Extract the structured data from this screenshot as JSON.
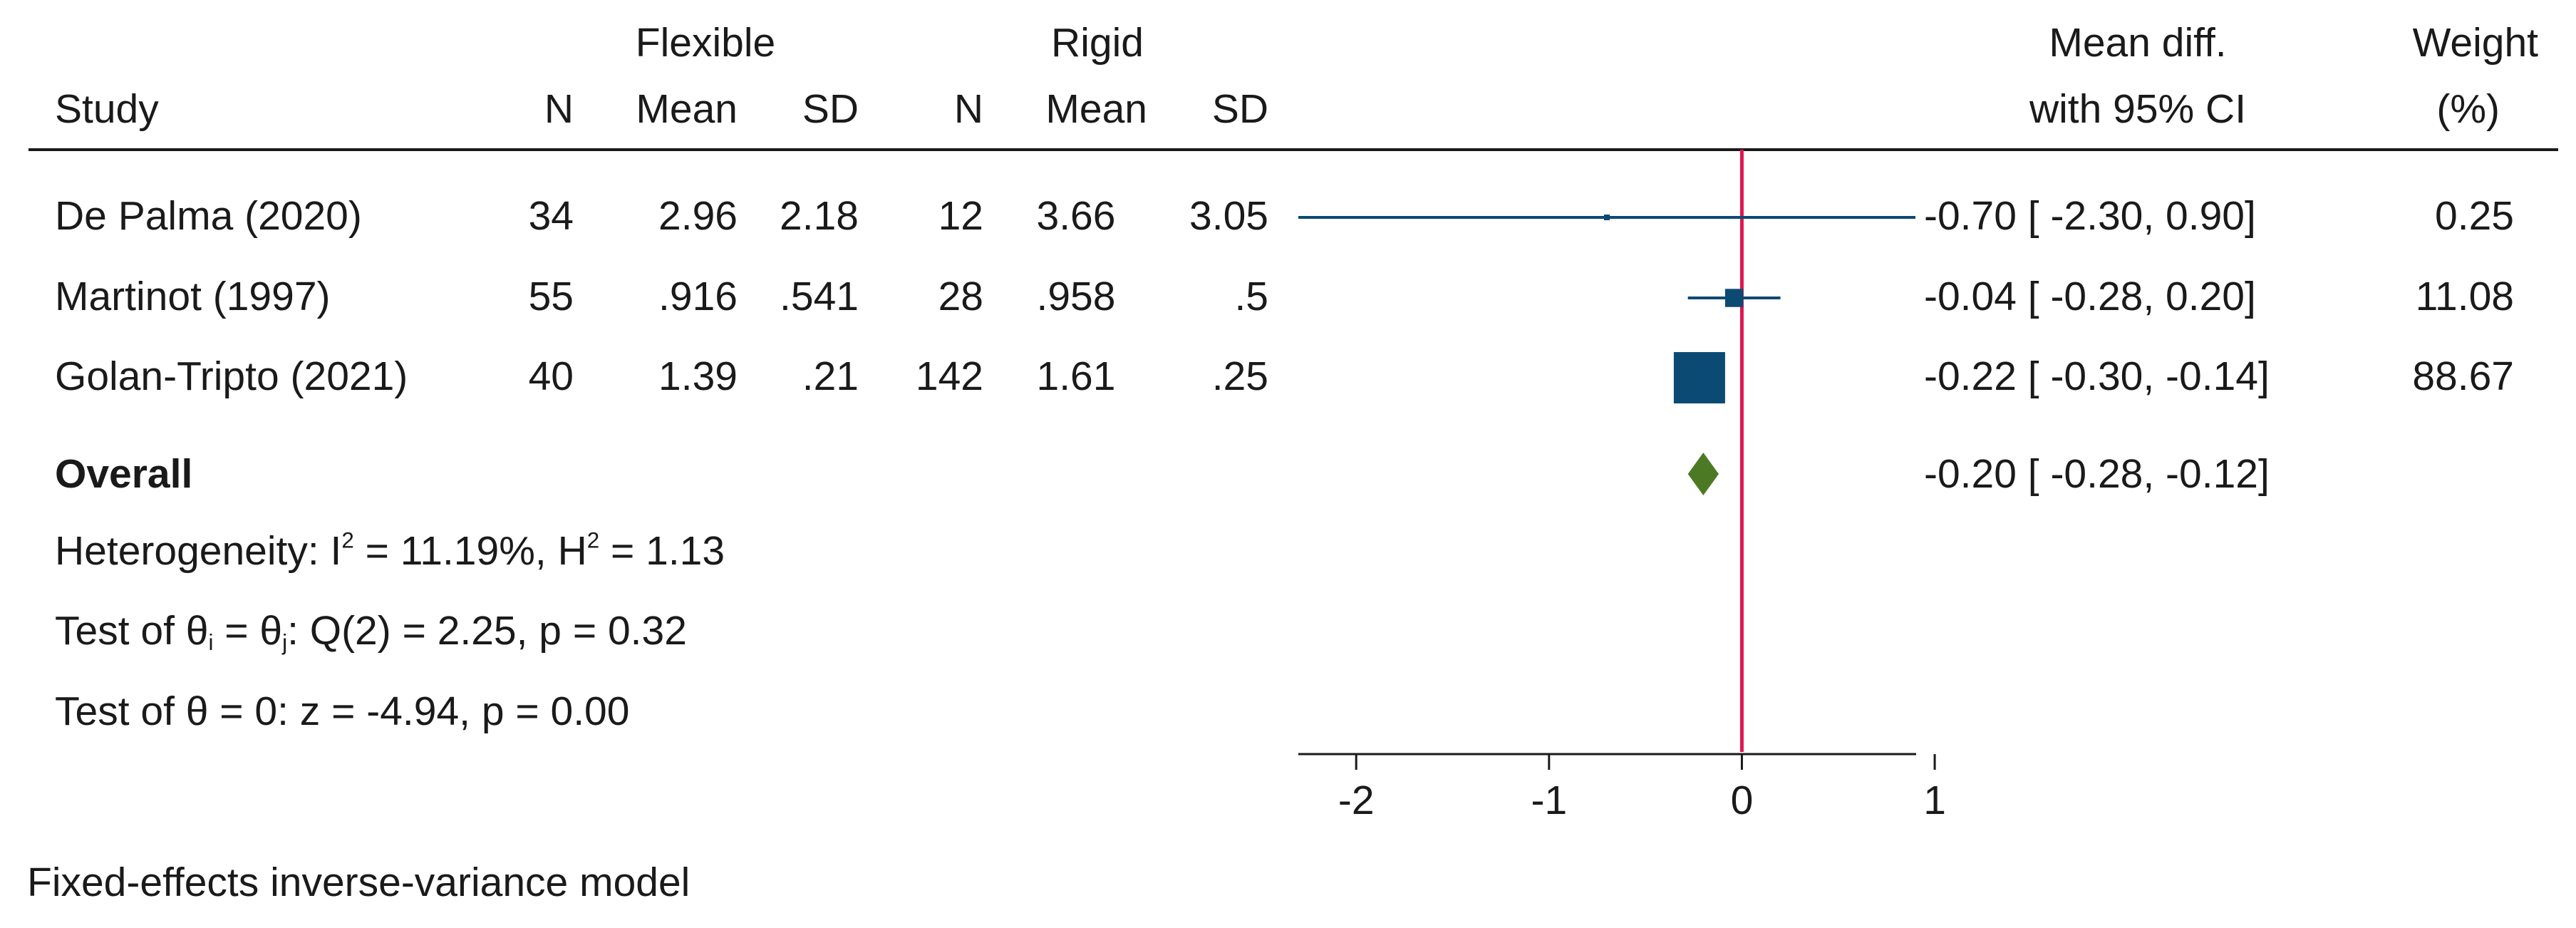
{
  "header": {
    "group1": "Flexible",
    "group2": "Rigid",
    "study": "Study",
    "n1": "N",
    "mean1": "Mean",
    "sd1": "SD",
    "n2": "N",
    "mean2": "Mean",
    "sd2": "SD",
    "effect_line1": "Mean diff.",
    "effect_line2": "with 95% CI",
    "weight_line1": "Weight",
    "weight_line2": "(%)"
  },
  "studies": [
    {
      "study": "De Palma (2020)",
      "n1": "34",
      "mean1": "2.96",
      "sd1": "2.18",
      "n2": "12",
      "mean2": "3.66",
      "sd2": "3.05",
      "est": "-0.70",
      "lo": "-2.30",
      "hi": "0.90",
      "weight": "0.25"
    },
    {
      "study": "Martinot (1997)",
      "n1": "55",
      "mean1": ".916",
      "sd1": ".541",
      "n2": "28",
      "mean2": ".958",
      "sd2": ".5",
      "est": "-0.04",
      "lo": "-0.28",
      "hi": "0.20",
      "weight": "11.08"
    },
    {
      "study": "Golan-Tripto (2021)",
      "n1": "40",
      "mean1": "1.39",
      "sd1": ".21",
      "n2": "142",
      "mean2": "1.61",
      "sd2": ".25",
      "est": "-0.22",
      "lo": "-0.30",
      "hi": "-0.14",
      "weight": "88.67"
    }
  ],
  "overall": {
    "label": "Overall",
    "est": "-0.20",
    "lo": "-0.28",
    "hi": "-0.12"
  },
  "stats": {
    "het_prefix": "Heterogeneity: I",
    "het_sup1": "2",
    "het_mid": " = 11.19%, H",
    "het_sup2": "2",
    "het_suffix": " = 1.13",
    "q_prefix": "Test of θ",
    "q_sub1": "i",
    "q_mid": " = θ",
    "q_sub2": "j",
    "q_suffix": ": Q(2) = 2.25, p = 0.32",
    "z_test": "Test of θ = 0: z = -4.94, p = 0.00"
  },
  "footnote": "Fixed-effects inverse-variance model",
  "chart_data": {
    "type": "forest",
    "xlim": [
      -2.3,
      0.9
    ],
    "null_line": 0,
    "xticks": [
      -2,
      -1,
      0,
      1
    ],
    "xtick_labels": [
      "-2",
      "-1",
      "0",
      "1"
    ],
    "studies": [
      {
        "name": "De Palma (2020)",
        "est": -0.7,
        "lo": -2.3,
        "hi": 0.9,
        "weight": 0.25
      },
      {
        "name": "Martinot (1997)",
        "est": -0.04,
        "lo": -0.28,
        "hi": 0.2,
        "weight": 11.08
      },
      {
        "name": "Golan-Tripto (2021)",
        "est": -0.22,
        "lo": -0.3,
        "hi": -0.14,
        "weight": 88.67
      }
    ],
    "overall": {
      "est": -0.2,
      "lo": -0.28,
      "hi": -0.12
    },
    "colors": {
      "study": "#0b4a73",
      "overall": "#4c7a24",
      "null_line": "#e0174f",
      "axis": "#1a1a1a"
    }
  }
}
